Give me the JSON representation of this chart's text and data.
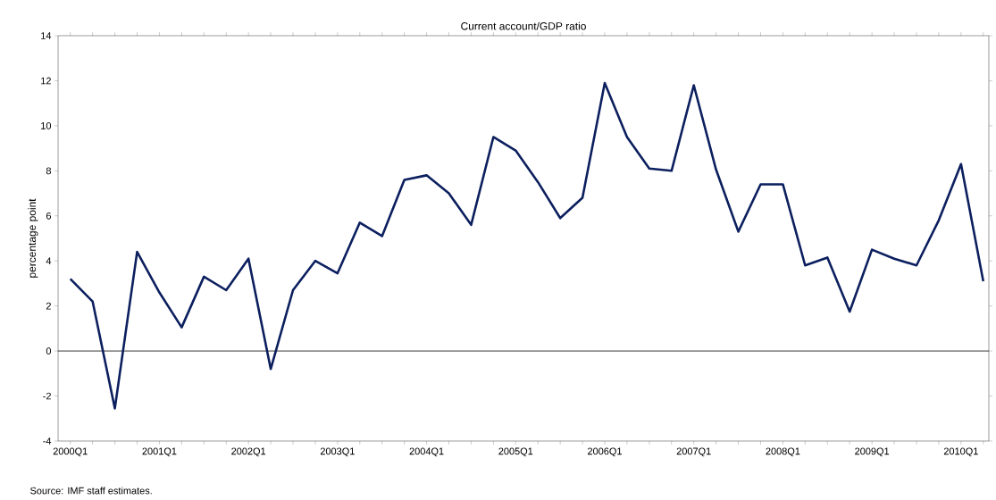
{
  "chart_data": {
    "type": "line",
    "title": "Current account/GDP ratio",
    "ylabel": "percentage point",
    "categories": [
      "2000Q1",
      null,
      null,
      null,
      "2001Q1",
      null,
      null,
      null,
      "2002Q1",
      null,
      null,
      null,
      "2003Q1",
      null,
      null,
      null,
      "2004Q1",
      null,
      null,
      null,
      "2005Q1",
      null,
      null,
      null,
      "2006Q1",
      null,
      null,
      null,
      "2007Q1",
      null,
      null,
      null,
      "2008Q1",
      null,
      null,
      null,
      "2009Q1",
      null,
      null,
      null,
      "2010Q1",
      null
    ],
    "values": [
      3.2,
      2.2,
      -2.55,
      4.4,
      2.6,
      1.05,
      3.3,
      2.7,
      4.1,
      -0.8,
      2.7,
      4.0,
      3.45,
      5.7,
      5.1,
      7.6,
      7.8,
      7.0,
      5.6,
      9.5,
      8.9,
      7.5,
      5.9,
      6.8,
      11.9,
      9.5,
      8.1,
      8.0,
      11.8,
      8.05,
      5.3,
      7.4,
      7.4,
      3.8,
      4.15,
      1.75,
      4.5,
      4.1,
      3.8,
      5.8,
      8.3,
      3.1
    ],
    "color": "#0c1f5e",
    "ylim": [
      -4,
      14
    ],
    "yticks": [
      -4,
      -2,
      0,
      2,
      4,
      6,
      8,
      10,
      12,
      14
    ],
    "grid": false,
    "marker": "none",
    "line_style": "solid",
    "ref_lines": [
      {
        "axis": "y",
        "value": 0,
        "color": "#000000"
      }
    ],
    "annotations": [
      "Source: IMF staff estimates."
    ]
  }
}
